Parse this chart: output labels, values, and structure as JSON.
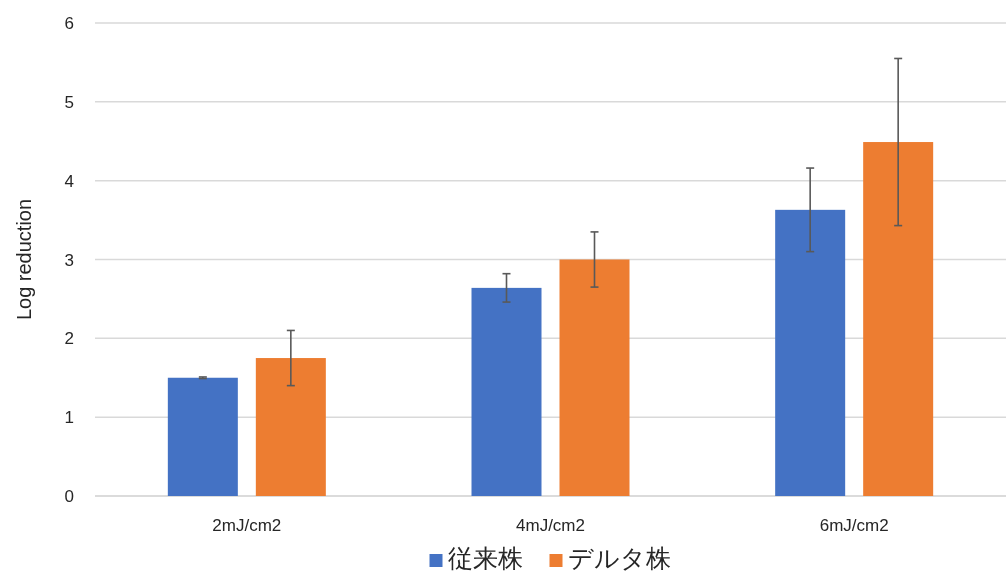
{
  "chart_data": {
    "type": "bar",
    "ylabel": "Log reduction",
    "categories": [
      "2mJ/cm2",
      "4mJ/cm2",
      "6mJ/cm2"
    ],
    "ylim": [
      0,
      6
    ],
    "yticks": [
      0,
      1,
      2,
      3,
      4,
      5,
      6
    ],
    "grid": "y",
    "legend": "bottom",
    "series": [
      {
        "name": "従来株",
        "color": "#4472c4",
        "values": [
          1.5,
          2.64,
          3.63
        ],
        "errors": [
          0.01,
          0.18,
          0.53
        ]
      },
      {
        "name": "デルタ株",
        "color": "#ed7d31",
        "values": [
          1.75,
          3.0,
          4.49
        ],
        "errors": [
          0.35,
          0.35,
          1.06
        ]
      }
    ]
  }
}
